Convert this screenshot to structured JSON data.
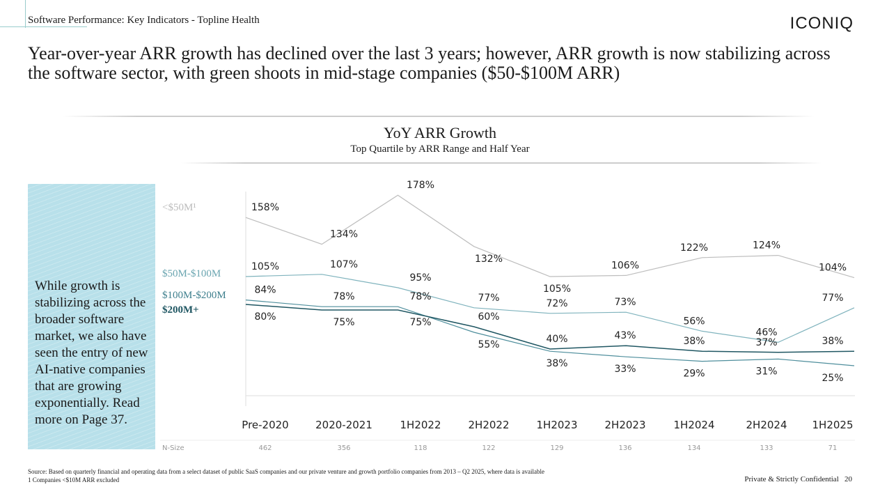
{
  "header": {
    "section": "Software Performance: Key Indicators - Topline Health",
    "logo": "ICONIQ"
  },
  "headline": "Year-over-year ARR growth has declined over the last 3 years; however, ARR growth is now stabilizing across the software sector, with green shoots in mid-stage companies ($50-$100M ARR)",
  "sidebar_text": "While growth is stabilizing across the broader software market, we also have seen the entry of new AI-native companies that are growing exponentially. Read more on Page 37.",
  "chart_data": {
    "type": "line",
    "title": "YoY ARR Growth",
    "subtitle": "Top Quartile by ARR Range and Half Year",
    "categories": [
      "Pre-2020",
      "2020-2021",
      "1H2022",
      "2H2022",
      "1H2023",
      "2H2023",
      "1H2024",
      "2H2024",
      "1H2025"
    ],
    "ylim": [
      0,
      180
    ],
    "series": [
      {
        "name": "<$50M¹",
        "color": "#bdbdbd",
        "values": [
          158,
          134,
          178,
          132,
          105,
          106,
          122,
          124,
          104
        ]
      },
      {
        "name": "$50M-$100M",
        "color": "#7fb3bd",
        "values": [
          105,
          107,
          95,
          77,
          72,
          73,
          56,
          46,
          77
        ]
      },
      {
        "name": "$100M-$200M",
        "color": "#4e8e9c",
        "values": [
          84,
          78,
          78,
          55,
          38,
          33,
          29,
          31,
          25
        ]
      },
      {
        "name": "$200M+",
        "color": "#1f5662",
        "values": [
          80,
          75,
          75,
          60,
          40,
          43,
          38,
          37,
          38
        ]
      }
    ],
    "nsize_label": "N-Size",
    "nsize": [
      462,
      356,
      118,
      122,
      129,
      136,
      134,
      133,
      71
    ]
  },
  "footer": {
    "source": "Source: Based on quarterly financial and operating data from a select dataset of public SaaS companies and our private venture and growth portfolio companies from 2013 – Q2 2025, where data is available",
    "note": "1 Companies <$10M ARR excluded",
    "confidential": "Private & Strictly Confidential",
    "page": "20"
  }
}
